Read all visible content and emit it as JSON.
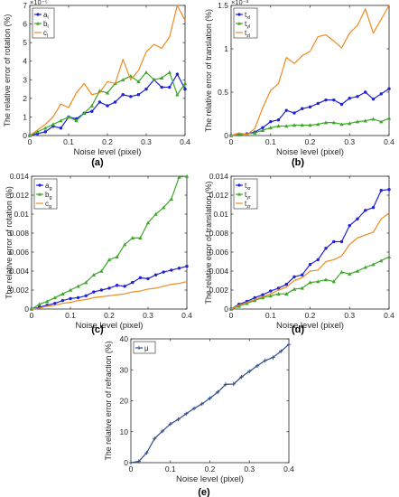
{
  "figure": {
    "panels": [
      {
        "key": "a",
        "caption": "(a)"
      },
      {
        "key": "b",
        "caption": "(b)"
      },
      {
        "key": "c",
        "caption": "(c)"
      },
      {
        "key": "d",
        "caption": "(d)"
      },
      {
        "key": "e",
        "caption": "(e)"
      }
    ]
  },
  "chart_data": [
    {
      "id": "a",
      "type": "line",
      "title": "",
      "xlabel": "Noise level (pixel)",
      "ylabel": "The relative error of rotation (%)",
      "xlim": [
        0,
        0.4
      ],
      "ylim": [
        0,
        7
      ],
      "exponent": "×10⁻⁵",
      "xticks": [
        0,
        0.1,
        0.2,
        0.3,
        0.4
      ],
      "yticks": [
        0,
        1,
        2,
        3,
        4,
        5,
        6,
        7
      ],
      "legend": {
        "position": "top-left"
      },
      "x": [
        0,
        0.02,
        0.04,
        0.06,
        0.08,
        0.1,
        0.12,
        0.14,
        0.16,
        0.18,
        0.2,
        0.22,
        0.24,
        0.26,
        0.28,
        0.3,
        0.32,
        0.34,
        0.36,
        0.38,
        0.4
      ],
      "series": [
        {
          "name": "a_l",
          "label_main": "a",
          "label_sub": "l",
          "color": "#1f22d8",
          "marker": "circle",
          "values": [
            0,
            0.1,
            0.2,
            0.5,
            0.4,
            1.0,
            0.9,
            1.2,
            1.3,
            1.8,
            1.6,
            1.8,
            2.2,
            2.1,
            2.2,
            2.5,
            3.0,
            2.6,
            2.6,
            3.3,
            2.5
          ]
        },
        {
          "name": "b_l",
          "label_main": "b",
          "label_sub": "l",
          "color": "#3fa82a",
          "marker": "triangle",
          "values": [
            0,
            0.2,
            0.4,
            0.6,
            0.8,
            1.0,
            0.8,
            1.2,
            1.6,
            2.4,
            2.3,
            2.8,
            3.0,
            3.2,
            2.9,
            3.4,
            3.0,
            3.1,
            3.4,
            2.2,
            2.8
          ]
        },
        {
          "name": "c_l",
          "label_main": "c",
          "label_sub": "l",
          "color": "#f08a1c",
          "marker": "none",
          "values": [
            0,
            0.3,
            0.6,
            1.0,
            1.7,
            1.5,
            2.3,
            2.8,
            2.2,
            2.3,
            2.9,
            2.8,
            4.1,
            3.0,
            3.5,
            4.5,
            4.9,
            4.7,
            5.3,
            7.0,
            6.2
          ]
        }
      ]
    },
    {
      "id": "b",
      "type": "line",
      "title": "",
      "xlabel": "Noise level (pixel)",
      "ylabel": "The relative error of translation (%)",
      "xlim": [
        0,
        0.4
      ],
      "ylim": [
        0,
        0.0015
      ],
      "exponent": "×10⁻³",
      "xticks": [
        0,
        0.1,
        0.2,
        0.3,
        0.4
      ],
      "yticks": [
        0,
        0.0005,
        0.001,
        0.0015
      ],
      "ytick_labels": [
        "0",
        "0.5",
        "1",
        "1.5"
      ],
      "legend": {
        "position": "top-left"
      },
      "x": [
        0,
        0.02,
        0.04,
        0.06,
        0.08,
        0.1,
        0.12,
        0.14,
        0.16,
        0.18,
        0.2,
        0.22,
        0.24,
        0.26,
        0.28,
        0.3,
        0.32,
        0.34,
        0.36,
        0.38,
        0.4
      ],
      "series": [
        {
          "name": "t_xl",
          "label_main": "t",
          "label_sub": "xl",
          "color": "#1f22d8",
          "marker": "circle",
          "values": [
            0,
            1e-05,
            2e-05,
            4e-05,
            9e-05,
            0.00016,
            0.00018,
            0.00029,
            0.00026,
            0.00031,
            0.00033,
            0.00037,
            0.00041,
            0.00041,
            0.00036,
            0.00043,
            0.00045,
            0.0005,
            0.00042,
            0.00048,
            0.00054
          ]
        },
        {
          "name": "t_yl",
          "label_main": "t",
          "label_sub": "yl",
          "color": "#3fa82a",
          "marker": "triangle",
          "values": [
            0,
            1e-05,
            2e-05,
            3e-05,
            6e-05,
            9e-05,
            0.00011,
            0.00011,
            0.00012,
            0.00012,
            0.00012,
            0.00013,
            0.00015,
            0.00015,
            0.00013,
            0.00014,
            0.00016,
            0.00017,
            0.00019,
            0.00016,
            0.0002
          ]
        },
        {
          "name": "t_zl",
          "label_main": "t",
          "label_sub": "zl",
          "color": "#f08a1c",
          "marker": "none",
          "values": [
            0,
            3e-05,
            1e-05,
            8e-05,
            0.00032,
            0.00052,
            0.0006,
            0.0009,
            0.00083,
            0.00092,
            0.00097,
            0.00114,
            0.00116,
            0.00109,
            0.00101,
            0.00118,
            0.00127,
            0.00146,
            0.00118,
            0.00134,
            0.0015
          ]
        }
      ]
    },
    {
      "id": "c",
      "type": "line",
      "title": "",
      "xlabel": "Noise level (pixel)",
      "ylabel": "The relative error of rotation (%)",
      "xlim": [
        0,
        0.4
      ],
      "ylim": [
        0,
        0.014
      ],
      "exponent": "",
      "xticks": [
        0,
        0.1,
        0.2,
        0.3,
        0.4
      ],
      "yticks": [
        0,
        0.002,
        0.004,
        0.006,
        0.008,
        0.01,
        0.012,
        0.014
      ],
      "legend": {
        "position": "top-left"
      },
      "x": [
        0,
        0.02,
        0.04,
        0.06,
        0.08,
        0.1,
        0.12,
        0.14,
        0.16,
        0.18,
        0.2,
        0.22,
        0.24,
        0.26,
        0.28,
        0.3,
        0.32,
        0.34,
        0.36,
        0.38,
        0.4
      ],
      "series": [
        {
          "name": "a_g",
          "label_main": "a",
          "label_sub": "g",
          "color": "#1f22d8",
          "marker": "circle",
          "values": [
            0,
            0.0002,
            0.0004,
            0.0006,
            0.0009,
            0.0011,
            0.0012,
            0.0014,
            0.0018,
            0.002,
            0.0022,
            0.0025,
            0.0024,
            0.0028,
            0.0033,
            0.0032,
            0.0036,
            0.0039,
            0.0041,
            0.0043,
            0.0045
          ]
        },
        {
          "name": "b_g",
          "label_main": "b",
          "label_sub": "g",
          "color": "#3fa82a",
          "marker": "triangle",
          "values": [
            0,
            0.0005,
            0.0008,
            0.0012,
            0.0016,
            0.002,
            0.0024,
            0.0028,
            0.0036,
            0.004,
            0.0052,
            0.0055,
            0.0068,
            0.0075,
            0.0075,
            0.0091,
            0.01,
            0.0107,
            0.0116,
            0.0139,
            0.014
          ]
        },
        {
          "name": "c_g",
          "label_main": "c",
          "label_sub": "g",
          "color": "#f08a1c",
          "marker": "none",
          "values": [
            0,
            0.0001,
            0.0003,
            0.0004,
            0.0006,
            0.0007,
            0.0009,
            0.001,
            0.0012,
            0.0013,
            0.0014,
            0.0015,
            0.0016,
            0.0018,
            0.0019,
            0.0021,
            0.0022,
            0.0024,
            0.0026,
            0.0027,
            0.0029
          ]
        }
      ]
    },
    {
      "id": "d",
      "type": "line",
      "title": "",
      "xlabel": "Noise level (pixel)",
      "ylabel": "The relative error of translation (%)",
      "xlim": [
        0,
        0.4
      ],
      "ylim": [
        0,
        0.014
      ],
      "exponent": "",
      "xticks": [
        0,
        0.1,
        0.2,
        0.3,
        0.4
      ],
      "yticks": [
        0,
        0.002,
        0.004,
        0.006,
        0.008,
        0.01,
        0.012,
        0.014
      ],
      "legend": {
        "position": "top-left"
      },
      "x": [
        0,
        0.02,
        0.04,
        0.06,
        0.08,
        0.1,
        0.12,
        0.14,
        0.16,
        0.18,
        0.2,
        0.22,
        0.24,
        0.26,
        0.28,
        0.3,
        0.32,
        0.34,
        0.36,
        0.38,
        0.4
      ],
      "series": [
        {
          "name": "t_xr",
          "label_main": "t",
          "label_sub": "xr",
          "color": "#1f22d8",
          "marker": "circle",
          "values": [
            0,
            0.0005,
            0.0008,
            0.0012,
            0.0015,
            0.0019,
            0.0022,
            0.0026,
            0.0034,
            0.0036,
            0.0047,
            0.0052,
            0.0064,
            0.0071,
            0.0071,
            0.0088,
            0.0095,
            0.0104,
            0.0107,
            0.0125,
            0.0126
          ]
        },
        {
          "name": "t_yr",
          "label_main": "t",
          "label_sub": "yr",
          "color": "#3fa82a",
          "marker": "triangle",
          "values": [
            0,
            0.0003,
            0.0006,
            0.0009,
            0.0012,
            0.0014,
            0.0016,
            0.0016,
            0.0021,
            0.0022,
            0.0028,
            0.0029,
            0.0031,
            0.0029,
            0.0039,
            0.0037,
            0.004,
            0.0044,
            0.0047,
            0.0051,
            0.0055
          ]
        },
        {
          "name": "t_zr",
          "label_main": "t",
          "label_sub": "zr",
          "color": "#f08a1c",
          "marker": "none",
          "values": [
            0,
            0.0004,
            0.0007,
            0.001,
            0.0013,
            0.0016,
            0.002,
            0.0023,
            0.003,
            0.0033,
            0.004,
            0.0041,
            0.005,
            0.0052,
            0.0056,
            0.0068,
            0.0075,
            0.0078,
            0.0081,
            0.0095,
            0.0101
          ]
        }
      ]
    },
    {
      "id": "e",
      "type": "line",
      "title": "",
      "xlabel": "Noise level (pixel)",
      "ylabel": "The relative error of refraction (%)",
      "xlim": [
        0,
        0.4
      ],
      "ylim": [
        0,
        40
      ],
      "exponent": "",
      "xticks": [
        0,
        0.1,
        0.2,
        0.3,
        0.4
      ],
      "yticks": [
        0,
        10,
        20,
        30,
        40
      ],
      "legend": {
        "position": "top-left"
      },
      "x": [
        0,
        0.02,
        0.04,
        0.06,
        0.08,
        0.1,
        0.12,
        0.14,
        0.16,
        0.18,
        0.2,
        0.22,
        0.24,
        0.26,
        0.28,
        0.3,
        0.32,
        0.34,
        0.36,
        0.38,
        0.4
      ],
      "series": [
        {
          "name": "μ",
          "label_main": "μ",
          "label_sub": "",
          "color": "#2f4b8a",
          "marker": "plus",
          "values": [
            0,
            0.4,
            3.2,
            7.8,
            10.2,
            12.5,
            14.0,
            15.8,
            17.5,
            19.0,
            20.8,
            22.8,
            25.3,
            25.4,
            27.7,
            29.5,
            31.3,
            33.0,
            34.0,
            36.0,
            38.2
          ]
        }
      ]
    }
  ]
}
